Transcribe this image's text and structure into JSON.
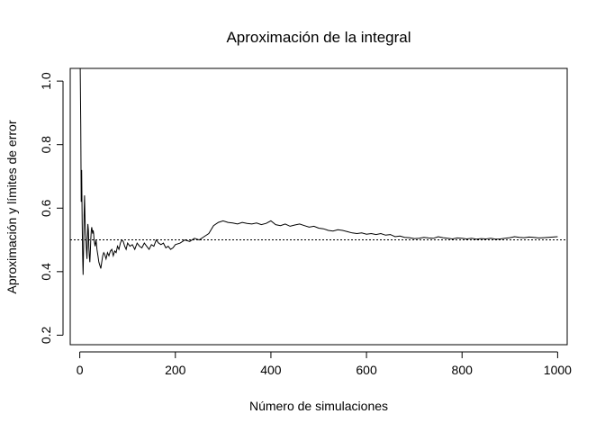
{
  "chart_data": {
    "type": "line",
    "title": "Aproximación de la integral",
    "xlabel": "Número de simulaciones",
    "ylabel": "Aproximación y límites de error",
    "xlim": [
      -20,
      1020
    ],
    "ylim": [
      0.17,
      1.04
    ],
    "x_ticks": [
      0,
      200,
      400,
      600,
      800,
      1000
    ],
    "y_ticks": [
      0.2,
      0.4,
      0.6,
      0.8,
      1.0
    ],
    "x_tick_labels": [
      "0",
      "200",
      "400",
      "600",
      "800",
      "1000"
    ],
    "y_tick_labels": [
      "0.2",
      "0.4",
      "0.6",
      "0.8",
      "1.0"
    ],
    "reference_line": {
      "y": 0.5,
      "style": "dotted"
    },
    "series": [
      {
        "x": [
          1,
          2,
          3,
          4,
          5,
          6,
          7,
          8,
          9,
          10,
          11,
          12,
          13,
          14,
          15,
          16,
          17,
          18,
          19,
          20,
          21,
          22,
          23,
          24,
          25,
          26,
          27,
          28,
          29,
          30,
          32,
          34,
          36,
          38,
          40,
          42,
          44,
          46,
          48,
          50,
          52,
          55,
          58,
          61,
          64,
          67,
          70,
          73,
          76,
          79,
          82,
          85,
          88,
          91,
          94,
          97,
          100,
          105,
          110,
          115,
          120,
          125,
          130,
          135,
          140,
          145,
          150,
          155,
          160,
          165,
          170,
          175,
          180,
          185,
          190,
          195,
          200,
          210,
          220,
          230,
          240,
          250,
          260,
          270,
          280,
          290,
          300,
          310,
          320,
          330,
          340,
          350,
          360,
          370,
          380,
          390,
          400,
          410,
          420,
          430,
          440,
          450,
          460,
          470,
          480,
          490,
          500,
          510,
          520,
          530,
          540,
          550,
          560,
          570,
          580,
          590,
          600,
          610,
          620,
          630,
          640,
          650,
          660,
          670,
          680,
          690,
          700,
          710,
          720,
          730,
          740,
          750,
          760,
          770,
          780,
          790,
          800,
          810,
          820,
          830,
          840,
          850,
          860,
          870,
          880,
          890,
          900,
          910,
          920,
          930,
          940,
          950,
          960,
          970,
          980,
          990,
          1000
        ],
        "y": [
          1.04,
          0.86,
          0.62,
          0.72,
          0.55,
          0.45,
          0.39,
          0.48,
          0.58,
          0.64,
          0.56,
          0.52,
          0.5,
          0.47,
          0.44,
          0.5,
          0.55,
          0.53,
          0.48,
          0.45,
          0.43,
          0.46,
          0.5,
          0.53,
          0.54,
          0.53,
          0.52,
          0.53,
          0.52,
          0.5,
          0.48,
          0.5,
          0.47,
          0.45,
          0.43,
          0.42,
          0.41,
          0.43,
          0.45,
          0.46,
          0.455,
          0.44,
          0.46,
          0.45,
          0.465,
          0.47,
          0.45,
          0.465,
          0.46,
          0.48,
          0.47,
          0.49,
          0.5,
          0.495,
          0.48,
          0.47,
          0.49,
          0.48,
          0.485,
          0.47,
          0.49,
          0.48,
          0.475,
          0.49,
          0.48,
          0.47,
          0.485,
          0.48,
          0.5,
          0.49,
          0.485,
          0.49,
          0.475,
          0.48,
          0.47,
          0.475,
          0.485,
          0.49,
          0.5,
          0.495,
          0.505,
          0.5,
          0.51,
          0.52,
          0.545,
          0.555,
          0.56,
          0.555,
          0.553,
          0.55,
          0.555,
          0.552,
          0.55,
          0.553,
          0.548,
          0.552,
          0.56,
          0.548,
          0.545,
          0.55,
          0.543,
          0.547,
          0.55,
          0.545,
          0.54,
          0.543,
          0.537,
          0.535,
          0.53,
          0.528,
          0.532,
          0.53,
          0.526,
          0.522,
          0.52,
          0.522,
          0.518,
          0.52,
          0.517,
          0.52,
          0.515,
          0.517,
          0.51,
          0.512,
          0.508,
          0.507,
          0.504,
          0.505,
          0.508,
          0.506,
          0.505,
          0.51,
          0.507,
          0.505,
          0.503,
          0.506,
          0.505,
          0.503,
          0.505,
          0.502,
          0.504,
          0.503,
          0.505,
          0.502,
          0.503,
          0.505,
          0.507,
          0.51,
          0.508,
          0.507,
          0.509,
          0.508,
          0.506,
          0.507,
          0.508,
          0.509,
          0.51
        ]
      }
    ],
    "grid": false,
    "legend": "none"
  }
}
